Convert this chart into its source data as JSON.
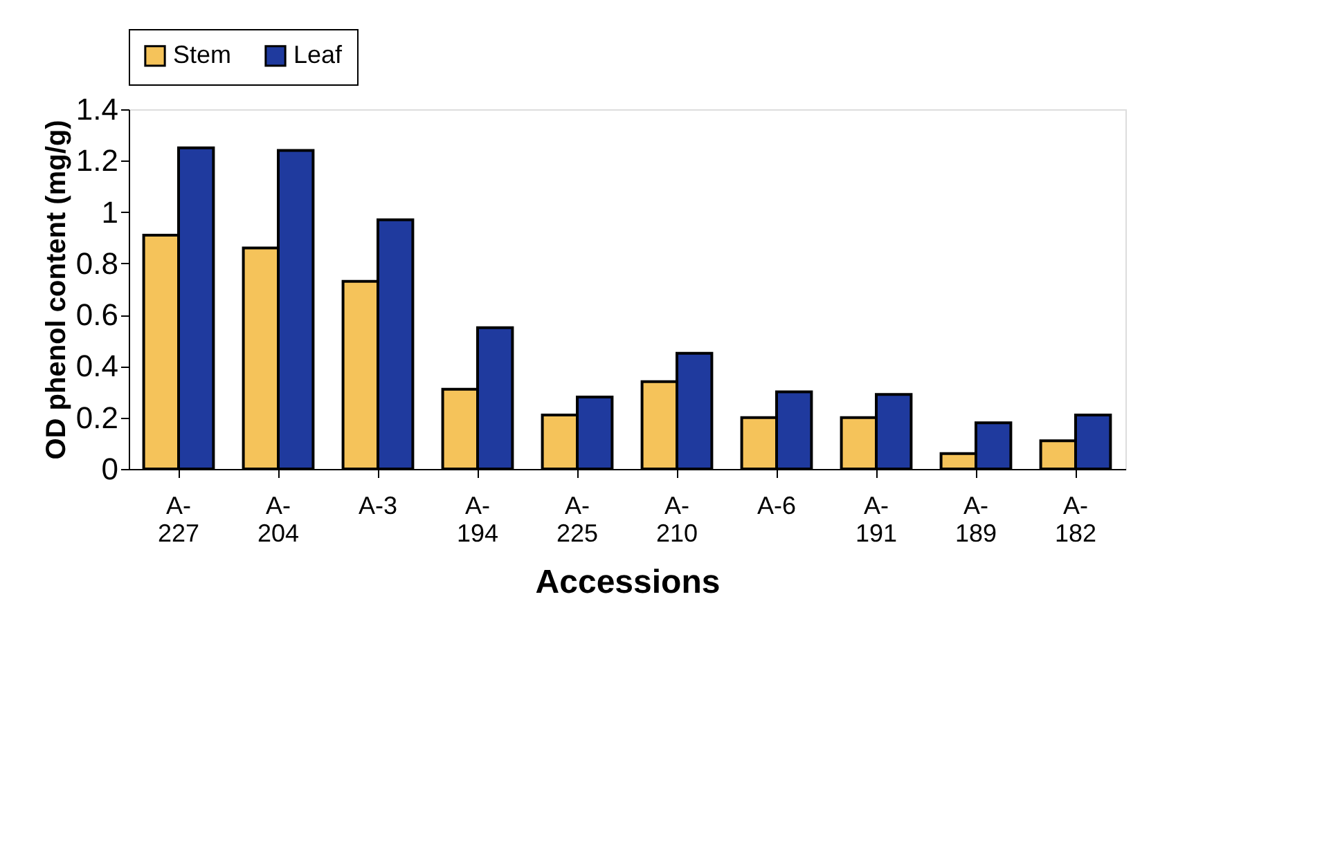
{
  "chart_data": {
    "type": "bar",
    "xlabel": "Accessions",
    "ylabel": "OD  phenol content (mg/g)",
    "categories": [
      "A-227",
      "A-204",
      "A-3",
      "A-194",
      "A-225",
      "A-210",
      "A-6",
      "A-191",
      "A-189",
      "A-182"
    ],
    "series": [
      {
        "name": "Stem",
        "color": "#f5c35a",
        "values": [
          0.91,
          0.86,
          0.73,
          0.31,
          0.21,
          0.34,
          0.2,
          0.2,
          0.06,
          0.11
        ]
      },
      {
        "name": "Leaf",
        "color": "#1f3a9e",
        "values": [
          1.25,
          1.24,
          0.97,
          0.55,
          0.28,
          0.45,
          0.3,
          0.29,
          0.18,
          0.21
        ]
      }
    ],
    "ylim": [
      0,
      1.4
    ],
    "yticks": [
      0,
      0.2,
      0.4,
      0.6,
      0.8,
      1,
      1.2,
      1.4
    ],
    "grid": false,
    "legend": "top"
  }
}
